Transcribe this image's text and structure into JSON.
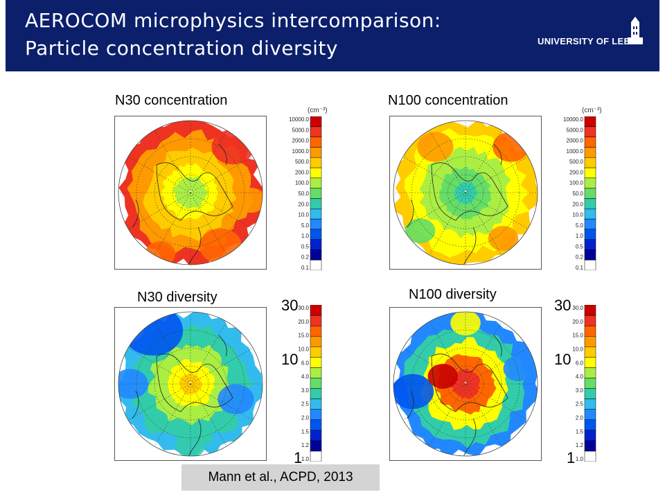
{
  "header": {
    "title_line1": "AEROCOM microphysics intercomparison:",
    "title_line2": "Particle concentration diversity",
    "logo_text": "UNIVERSITY OF LEEDS",
    "background_color": "#0b1f6b"
  },
  "panels": [
    {
      "id": "n30_conc",
      "label": "N30 concentration",
      "scheme": "conc_n30"
    },
    {
      "id": "n100_conc",
      "label": "N100 concentration",
      "scheme": "conc_n100"
    },
    {
      "id": "n30_div",
      "label": "N30 diversity",
      "scheme": "div_n30"
    },
    {
      "id": "n100_div",
      "label": "N100 diversity",
      "scheme": "div_n100"
    }
  ],
  "colorbars": {
    "concentration": {
      "units": "(cm⁻³)",
      "ticks": [
        "10000.0",
        "5000.0",
        "2000.0",
        "1000.0",
        "500.0",
        "200.0",
        "100.0",
        "50.0",
        "20.0",
        "10.0",
        "5.0",
        "1.0",
        "0.5",
        "0.2",
        "0.1"
      ]
    },
    "diversity": {
      "ticks": [
        "30.0",
        "20.0",
        "15.0",
        "10.0",
        "6.0",
        "4.0",
        "3.0",
        "2.5",
        "2.0",
        "1.5",
        "1.2",
        "1.0"
      ],
      "major_labels": {
        "top": "30",
        "mid": "10",
        "bottom": "1"
      }
    },
    "colors": [
      "#ffffff",
      "#000099",
      "#0022cc",
      "#0055ee",
      "#2288ff",
      "#33bbee",
      "#33ccaa",
      "#66dd66",
      "#aaee44",
      "#ffff00",
      "#ffcc00",
      "#ff9900",
      "#ff6600",
      "#ee3322",
      "#cc0000"
    ]
  },
  "citation": "Mann et al., ACPD, 2013"
}
